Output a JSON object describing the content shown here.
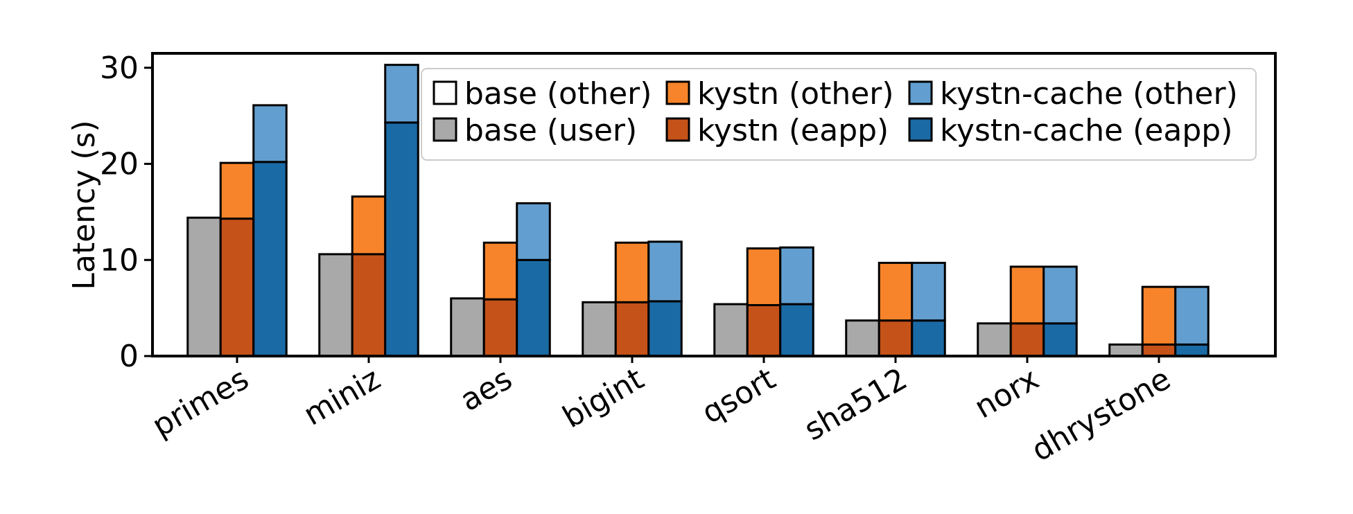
{
  "chart_data": {
    "type": "bar",
    "stacked": true,
    "grouped": true,
    "ylabel": "Latency (s)",
    "xlabel": "",
    "ylim": [
      0,
      31.5
    ],
    "yticks": [
      "0",
      "10",
      "20",
      "30"
    ],
    "grid": false,
    "legend_position": "top-right",
    "categories": [
      "primes",
      "miniz",
      "aes",
      "bigint",
      "qsort",
      "sha512",
      "norx",
      "dhrystone"
    ],
    "groups": [
      {
        "key": "base",
        "segments": [
          {
            "name": "base (user)",
            "color": "#a9a9a9",
            "values": [
              14.4,
              10.6,
              6.0,
              5.6,
              5.4,
              3.7,
              3.4,
              1.2
            ]
          },
          {
            "name": "base (other)",
            "color": "#ffffff",
            "values": [
              0,
              0,
              0,
              0,
              0,
              0,
              0,
              0
            ]
          }
        ]
      },
      {
        "key": "kystn",
        "segments": [
          {
            "name": "kystn (eapp)",
            "color": "#c55219",
            "values": [
              14.3,
              10.6,
              5.9,
              5.6,
              5.3,
              3.7,
              3.4,
              1.2
            ]
          },
          {
            "name": "kystn (other)",
            "color": "#f7842a",
            "values": [
              5.8,
              6.0,
              5.9,
              6.2,
              5.9,
              6.0,
              5.9,
              6.0
            ]
          }
        ]
      },
      {
        "key": "kystn-cache",
        "segments": [
          {
            "name": "kystn-cache (eapp)",
            "color": "#1a6aa5",
            "values": [
              20.2,
              24.3,
              10.0,
              5.7,
              5.4,
              3.7,
              3.4,
              1.2
            ]
          },
          {
            "name": "kystn-cache (other)",
            "color": "#629fd0",
            "values": [
              5.9,
              6.0,
              5.9,
              6.2,
              5.9,
              6.0,
              5.9,
              6.0
            ]
          }
        ]
      }
    ],
    "legend": [
      [
        {
          "label": "base (other)",
          "color": "#ffffff"
        },
        {
          "label": "kystn (other)",
          "color": "#f7842a"
        },
        {
          "label": "kystn-cache (other)",
          "color": "#629fd0"
        }
      ],
      [
        {
          "label": "base (user)",
          "color": "#a9a9a9"
        },
        {
          "label": "kystn (eapp)",
          "color": "#c55219"
        },
        {
          "label": "kystn-cache (eapp)",
          "color": "#1a6aa5"
        }
      ]
    ]
  }
}
